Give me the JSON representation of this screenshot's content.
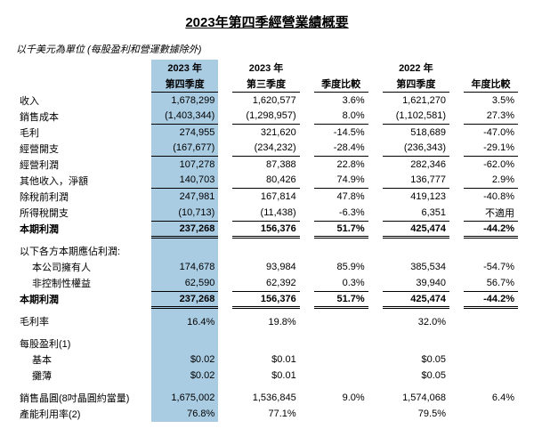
{
  "title": "2023年第四季經營業績概要",
  "unit_note": "以千美元為單位 (每股盈利和營運數據除外)",
  "headers": {
    "c1a": "2023 年",
    "c1b": "第四季度",
    "c2a": "2023 年",
    "c2b": "第三季度",
    "c3": "季度比較",
    "c4a": "2022 年",
    "c4b": "第四季度",
    "c5": "年度比較"
  },
  "rows": {
    "revenue": {
      "label": "收入",
      "c1": "1,678,299",
      "c2": "1,620,577",
      "c3": "3.6%",
      "c4": "1,621,270",
      "c5": "3.5%"
    },
    "cogs": {
      "label": "銷售成本",
      "c1": "(1,403,344)",
      "c2": "(1,298,957)",
      "c3": "8.0%",
      "c4": "(1,102,581)",
      "c5": "27.3%"
    },
    "gross": {
      "label": "毛利",
      "c1": "274,955",
      "c2": "321,620",
      "c3": "-14.5%",
      "c4": "518,689",
      "c5": "-47.0%"
    },
    "opex": {
      "label": "經營開支",
      "c1": "(167,677)",
      "c2": "(234,232)",
      "c3": "-28.4%",
      "c4": "(236,343)",
      "c5": "-29.1%"
    },
    "opinc": {
      "label": "經營利潤",
      "c1": "107,278",
      "c2": "87,388",
      "c3": "22.8%",
      "c4": "282,346",
      "c5": "-62.0%"
    },
    "other": {
      "label": "其他收入，淨額",
      "c1": "140,703",
      "c2": "80,426",
      "c3": "74.9%",
      "c4": "136,777",
      "c5": "2.9%"
    },
    "pbt": {
      "label": "除稅前利潤",
      "c1": "247,981",
      "c2": "167,814",
      "c3": "47.8%",
      "c4": "419,123",
      "c5": "-40.8%"
    },
    "tax": {
      "label": "所得稅開支",
      "c1": "(10,713)",
      "c2": "(11,438)",
      "c3": "-6.3%",
      "c4": "6,351",
      "c5": "不適用"
    },
    "net": {
      "label": "本期利潤",
      "c1": "237,268",
      "c2": "156,376",
      "c3": "51.7%",
      "c4": "425,474",
      "c5": "-44.2%"
    },
    "attr_hdr": {
      "label": "以下各方本期應佔利潤:"
    },
    "owners": {
      "label": "本公司擁有人",
      "c1": "174,678",
      "c2": "93,984",
      "c3": "85.9%",
      "c4": "385,534",
      "c5": "-54.7%"
    },
    "nci": {
      "label": "非控制性權益",
      "c1": "62,590",
      "c2": "62,392",
      "c3": "0.3%",
      "c4": "39,940",
      "c5": "56.7%"
    },
    "net2": {
      "label": "本期利潤",
      "c1": "237,268",
      "c2": "156,376",
      "c3": "51.7%",
      "c4": "425,474",
      "c5": "-44.2%"
    },
    "gm": {
      "label": "毛利率",
      "c1": "16.4%",
      "c2": "19.8%",
      "c3": "",
      "c4": "32.0%",
      "c5": ""
    },
    "eps_hdr": {
      "label": "每股盈利(1)"
    },
    "eps_basic": {
      "label": "基本",
      "c1": "$0.02",
      "c2": "$0.01",
      "c3": "",
      "c4": "$0.05",
      "c5": ""
    },
    "eps_diluted": {
      "label": "攤薄",
      "c1": "$0.02",
      "c2": "$0.01",
      "c3": "",
      "c4": "$0.05",
      "c5": ""
    },
    "wafers": {
      "label": "銷售晶圓(8吋晶圓約當量)",
      "c1": "1,675,002",
      "c2": "1,536,845",
      "c3": "9.0%",
      "c4": "1,574,068",
      "c5": "6.4%"
    },
    "util": {
      "label": "產能利用率(2)",
      "c1": "76.8%",
      "c2": "77.1%",
      "c3": "",
      "c4": "79.5%",
      "c5": ""
    }
  }
}
